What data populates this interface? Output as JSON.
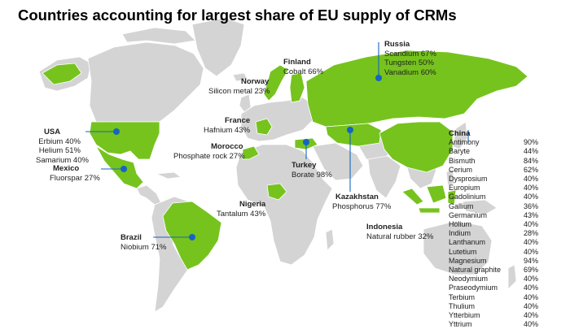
{
  "title": "Countries accounting for largest share of EU supply of CRMs",
  "colors": {
    "highlight": "#76c31e",
    "land": "#d4d4d4",
    "marker": "#1565c0",
    "line": "#1565c0"
  },
  "countries": [
    {
      "id": "russia",
      "name": "Russia",
      "items": [
        "Scandium 67%",
        "Tungsten 50%",
        "Vanadium 60%"
      ]
    },
    {
      "id": "finland",
      "name": "Finland",
      "items": [
        "Cobalt 66%"
      ]
    },
    {
      "id": "norway",
      "name": "Norway",
      "items": [
        "Silicon metal 23%"
      ]
    },
    {
      "id": "france",
      "name": "France",
      "items": [
        "Hafnium 43%"
      ]
    },
    {
      "id": "morocco",
      "name": "Morocco",
      "items": [
        "Phosphate rock 27%"
      ]
    },
    {
      "id": "usa",
      "name": "USA",
      "items": [
        "Erbium 40%",
        "Helium 51%",
        "Samarium 40%"
      ]
    },
    {
      "id": "mexico",
      "name": "Mexico",
      "items": [
        "Fluorspar 27%"
      ]
    },
    {
      "id": "turkey",
      "name": "Turkey",
      "items": [
        "Borate 98%"
      ]
    },
    {
      "id": "kazakhstan",
      "name": "Kazakhstan",
      "items": [
        "Phosphorus 77%"
      ]
    },
    {
      "id": "nigeria",
      "name": "Nigeria",
      "items": [
        "Tantalum 43%"
      ]
    },
    {
      "id": "indonesia",
      "name": "Indonesia",
      "items": [
        "Natural rubber 32%"
      ]
    },
    {
      "id": "brazil",
      "name": "Brazil",
      "items": [
        "Niobium 71%"
      ]
    }
  ],
  "china": {
    "name": "China",
    "items": [
      {
        "material": "Antimony",
        "share": "90%"
      },
      {
        "material": "Baryte",
        "share": "44%"
      },
      {
        "material": "Bismuth",
        "share": "84%"
      },
      {
        "material": "Cerium",
        "share": "62%"
      },
      {
        "material": "Dysprosium",
        "share": "40%"
      },
      {
        "material": "Europium",
        "share": "40%"
      },
      {
        "material": "Gadolinium",
        "share": "40%"
      },
      {
        "material": "Gallium",
        "share": "36%"
      },
      {
        "material": "Germanium",
        "share": "43%"
      },
      {
        "material": "Holium",
        "share": "40%"
      },
      {
        "material": "Indium",
        "share": "28%"
      },
      {
        "material": "Lanthanum",
        "share": "40%"
      },
      {
        "material": "Lutetium",
        "share": "40%"
      },
      {
        "material": "Magnesium",
        "share": "94%"
      },
      {
        "material": "Natural graphite",
        "share": "69%"
      },
      {
        "material": "Neodymium",
        "share": "40%"
      },
      {
        "material": "Praseodymium",
        "share": "40%"
      },
      {
        "material": "Terbium",
        "share": "40%"
      },
      {
        "material": "Thulium",
        "share": "40%"
      },
      {
        "material": "Ytterbium",
        "share": "40%"
      },
      {
        "material": "Yttrium",
        "share": "40%"
      }
    ]
  }
}
